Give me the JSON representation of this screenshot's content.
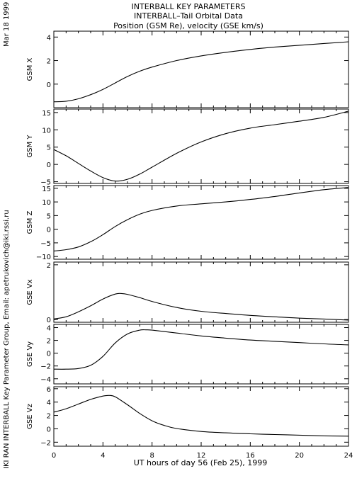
{
  "header": {
    "title_line1": "INTERBALL KEY PARAMETERS",
    "title_line2": "INTERBALL–Tail Orbital Data",
    "title_line3": "Position (GSM Re), velocity (GSE km/s)"
  },
  "side_labels": {
    "date": "Mar 18 1999",
    "credit": "IKI RAN INTERBALL Key Parameter Group, Email: apetrukovich@iki.rssi.ru"
  },
  "x_axis": {
    "label": "UT hours of day  56 (Feb 25), 1999",
    "min": 0,
    "max": 24,
    "ticks": [
      "0",
      "4",
      "8",
      "12",
      "16",
      "20",
      "24"
    ]
  },
  "chart_data": [
    {
      "type": "line",
      "ylabel": "GSM X",
      "ylim": [
        -2,
        4.5
      ],
      "yticks": [
        "4",
        "2",
        "0"
      ],
      "ytick_values": [
        4,
        2,
        0
      ],
      "x": [
        0,
        1,
        2,
        3,
        4,
        5,
        6,
        7,
        8,
        10,
        12,
        14,
        16,
        18,
        20,
        22,
        24
      ],
      "y": [
        -1.5,
        -1.45,
        -1.25,
        -0.9,
        -0.45,
        0.1,
        0.65,
        1.1,
        1.45,
        2.0,
        2.4,
        2.7,
        2.95,
        3.15,
        3.3,
        3.45,
        3.6
      ]
    },
    {
      "type": "line",
      "ylabel": "GSM Y",
      "ylim": [
        -5.5,
        16
      ],
      "yticks": [
        "15",
        "10",
        "5",
        "0",
        "−5"
      ],
      "ytick_values": [
        15,
        10,
        5,
        0,
        -5
      ],
      "x": [
        0,
        1,
        2,
        3,
        4,
        5,
        6,
        7,
        8,
        10,
        12,
        14,
        16,
        18,
        20,
        22,
        24
      ],
      "y": [
        4.3,
        2.5,
        0.3,
        -1.9,
        -3.8,
        -4.8,
        -4.3,
        -2.8,
        -0.8,
        3.2,
        6.5,
        8.9,
        10.5,
        11.5,
        12.5,
        13.6,
        15.4
      ]
    },
    {
      "type": "line",
      "ylabel": "GSM Z",
      "ylim": [
        -11,
        16
      ],
      "yticks": [
        "15",
        "10",
        "5",
        "0",
        "−5",
        "−10"
      ],
      "ytick_values": [
        15,
        10,
        5,
        0,
        -5,
        -10
      ],
      "x": [
        0,
        1,
        2,
        3,
        4,
        5,
        6,
        7,
        8,
        10,
        12,
        14,
        16,
        18,
        20,
        22,
        24
      ],
      "y": [
        -8.0,
        -7.5,
        -6.5,
        -4.6,
        -2.0,
        1.0,
        3.5,
        5.5,
        6.9,
        8.5,
        9.3,
        10.0,
        10.9,
        12.0,
        13.3,
        14.5,
        15.3
      ]
    },
    {
      "type": "line",
      "ylabel": "GSE Vx",
      "ylim": [
        -0.1,
        2.1
      ],
      "yticks": [
        "2",
        "0"
      ],
      "ytick_values": [
        2,
        0
      ],
      "x": [
        0,
        1,
        2,
        3,
        4,
        5,
        5.5,
        6,
        7,
        8,
        10,
        12,
        14,
        16,
        18,
        20,
        22,
        24
      ],
      "y": [
        0.02,
        0.1,
        0.28,
        0.5,
        0.75,
        0.93,
        0.95,
        0.92,
        0.8,
        0.66,
        0.44,
        0.3,
        0.22,
        0.15,
        0.1,
        0.05,
        0.02,
        -0.02
      ]
    },
    {
      "type": "line",
      "ylabel": "GSE Vy",
      "ylim": [
        -4.8,
        4.5
      ],
      "yticks": [
        "4",
        "2",
        "0",
        "−2",
        "−4"
      ],
      "ytick_values": [
        4,
        2,
        0,
        -2,
        -4
      ],
      "x": [
        0,
        1,
        2,
        3,
        4,
        5,
        6,
        7,
        7.5,
        8,
        10,
        12,
        14,
        16,
        18,
        20,
        22,
        24
      ],
      "y": [
        -2.5,
        -2.5,
        -2.4,
        -1.9,
        -0.5,
        1.6,
        3.0,
        3.6,
        3.65,
        3.6,
        3.15,
        2.7,
        2.35,
        2.05,
        1.85,
        1.65,
        1.45,
        1.3
      ]
    },
    {
      "type": "line",
      "ylabel": "GSE Vz",
      "ylim": [
        -2.6,
        6.3
      ],
      "yticks": [
        "6",
        "4",
        "2",
        "0",
        "−2"
      ],
      "ytick_values": [
        6,
        4,
        2,
        0,
        -2
      ],
      "x": [
        0,
        1,
        2,
        3,
        4,
        4.5,
        5,
        6,
        7,
        8,
        9,
        10,
        12,
        14,
        16,
        18,
        20,
        22,
        24
      ],
      "y": [
        2.5,
        3.0,
        3.7,
        4.4,
        4.9,
        5.0,
        4.8,
        3.6,
        2.3,
        1.2,
        0.5,
        0.05,
        -0.4,
        -0.6,
        -0.75,
        -0.85,
        -0.95,
        -1.05,
        -1.1
      ]
    }
  ]
}
